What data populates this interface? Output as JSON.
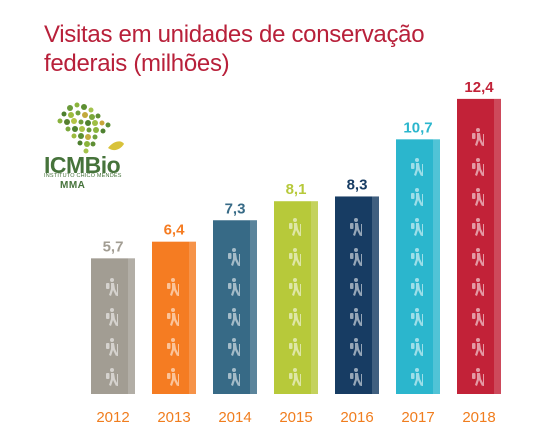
{
  "title": "Visitas em unidades de conservação federais (milhões)",
  "logo": {
    "name": "ICMBio",
    "subtitle": "INSTITUTO CHICO MENDES",
    "org": "MMA"
  },
  "colors": {
    "title": "#b8203a",
    "bars": [
      "#a29d93",
      "#f57c22",
      "#376a86",
      "#b7c93a",
      "#173c63",
      "#2bb6cd",
      "#c22238"
    ],
    "year_label": "#f07d1e"
  },
  "icons": {
    "bar_watermark": "hiker-icon"
  },
  "chart_data": {
    "type": "bar",
    "title": "Visitas em unidades de conservação federais (milhões)",
    "categories": [
      "2012",
      "2013",
      "2014",
      "2015",
      "2016",
      "2017",
      "2018"
    ],
    "values": [
      5.7,
      6.4,
      7.3,
      8.1,
      8.3,
      10.7,
      12.4
    ],
    "value_labels": [
      "5,7",
      "6,4",
      "7,3",
      "8,1",
      "8,3",
      "10,7",
      "12,4"
    ],
    "xlabel": "",
    "ylabel": "",
    "grid": false,
    "legend": "none"
  }
}
